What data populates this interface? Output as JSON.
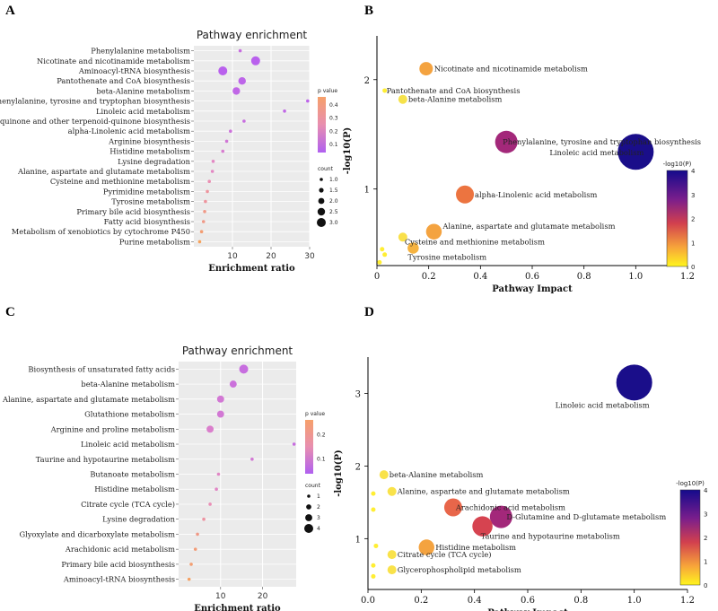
{
  "chart_data": [
    {
      "panel": "A",
      "type": "scatter",
      "title": "Pathway enrichment",
      "xlabel": "Enrichment ratio",
      "xlim": [
        0,
        30
      ],
      "xticks": [
        "10",
        "20",
        "30"
      ],
      "legend_pvalue": {
        "title": "p value",
        "ticks": [
          "0.4",
          "0.3",
          "0.2",
          "0.1"
        ]
      },
      "legend_count": {
        "title": "count",
        "items": [
          "1.0",
          "1.5",
          "2.0",
          "2.5",
          "3.0"
        ]
      },
      "points": [
        {
          "label": "Phenylalanine metabolism",
          "x": 12.0,
          "count": 1,
          "p": 0.08
        },
        {
          "label": "Nicotinate and nicotinamide metabolism",
          "x": 16.0,
          "count": 3,
          "p": 0.02
        },
        {
          "label": "Aminoacyl-tRNA biosynthesis",
          "x": 7.5,
          "count": 3,
          "p": 0.02
        },
        {
          "label": "Pantothenate and CoA biosynthesis",
          "x": 12.5,
          "count": 2.5,
          "p": 0.04
        },
        {
          "label": "beta-Alanine metabolism",
          "x": 11.0,
          "count": 2.5,
          "p": 0.05
        },
        {
          "label": "Phenylalanine, tyrosine and tryptophan biosynthesis",
          "x": 29.5,
          "count": 1,
          "p": 0.04
        },
        {
          "label": "Linoleic acid metabolism",
          "x": 23.5,
          "count": 1,
          "p": 0.05
        },
        {
          "label": "Ubiquinone and other terpenoid-quinone biosynthesis",
          "x": 13.0,
          "count": 1,
          "p": 0.08
        },
        {
          "label": "alpha-Linolenic acid metabolism",
          "x": 9.5,
          "count": 1,
          "p": 0.1
        },
        {
          "label": "Arginine biosynthesis",
          "x": 8.5,
          "count": 1,
          "p": 0.12
        },
        {
          "label": "Histidine metabolism",
          "x": 7.5,
          "count": 1,
          "p": 0.15
        },
        {
          "label": "Lysine degradation",
          "x": 5.0,
          "count": 1,
          "p": 0.2
        },
        {
          "label": "Alanine, aspartate and glutamate metabolism",
          "x": 4.8,
          "count": 1,
          "p": 0.2
        },
        {
          "label": "Cysteine and methionine metabolism",
          "x": 4.0,
          "count": 1,
          "p": 0.25
        },
        {
          "label": "Pyrimidine metabolism",
          "x": 3.5,
          "count": 1,
          "p": 0.3
        },
        {
          "label": "Tyrosine metabolism",
          "x": 3.0,
          "count": 1,
          "p": 0.3
        },
        {
          "label": "Primary bile acid biosynthesis",
          "x": 2.8,
          "count": 1,
          "p": 0.35
        },
        {
          "label": "Fatty acid biosynthesis",
          "x": 2.5,
          "count": 1,
          "p": 0.35
        },
        {
          "label": "Metabolism of xenobiotics by cytochrome P450",
          "x": 2.0,
          "count": 1,
          "p": 0.4
        },
        {
          "label": "Purine metabolism",
          "x": 1.5,
          "count": 1,
          "p": 0.45
        }
      ]
    },
    {
      "panel": "B",
      "type": "scatter",
      "xlabel": "Pathway Impact",
      "ylabel": "-log10(P)",
      "xlim": [
        0,
        1.2
      ],
      "ylim": [
        0.3,
        2.4
      ],
      "xticks": [
        "0",
        "0.2",
        "0.4",
        "0.6",
        "0.8",
        "1.0",
        "1.2"
      ],
      "yticks": [
        "1",
        "2"
      ],
      "colorbar": {
        "title": "-log10(P)",
        "ticks": [
          "4",
          "3",
          "2",
          "1",
          "0"
        ]
      },
      "points": [
        {
          "label": "Nicotinate and nicotinamide metabolism",
          "x": 0.19,
          "y": 2.1,
          "size": 6,
          "color": "#f4a340"
        },
        {
          "label": "Pantothenate and CoA biosynthesis",
          "x": 0.03,
          "y": 1.9,
          "size": 2,
          "color": "#ffee33"
        },
        {
          "label": "beta-Alanine metabolism",
          "x": 0.1,
          "y": 1.82,
          "size": 4,
          "color": "#f6e24a"
        },
        {
          "label": "Phenylalanine, tyrosine and tryptophan biosynthesis",
          "x": 0.5,
          "y": 1.43,
          "size": 10,
          "color": "#a3287a"
        },
        {
          "label": "Linoleic acid metabolism",
          "x": 1.0,
          "y": 1.34,
          "size": 16,
          "color": "#1a0e8a"
        },
        {
          "label": "alpha-Linolenic acid metabolism",
          "x": 0.34,
          "y": 0.95,
          "size": 8,
          "color": "#ec7440"
        },
        {
          "label": "Alanine, aspartate and glutamate metabolism",
          "x": 0.22,
          "y": 0.61,
          "size": 7,
          "color": "#f4a340"
        },
        {
          "label": "Cysteine and methionine metabolism",
          "x": 0.1,
          "y": 0.56,
          "size": 4,
          "color": "#f9e04a"
        },
        {
          "label": "Tyrosine metabolism",
          "x": 0.14,
          "y": 0.46,
          "size": 5,
          "color": "#f6b340"
        },
        {
          "label": "",
          "x": 0.02,
          "y": 0.45,
          "size": 2,
          "color": "#ffee33"
        },
        {
          "label": "",
          "x": 0.03,
          "y": 0.4,
          "size": 2,
          "color": "#ffee33"
        },
        {
          "label": "",
          "x": 0.01,
          "y": 0.33,
          "size": 2,
          "color": "#ffee33"
        }
      ]
    },
    {
      "panel": "C",
      "type": "scatter",
      "title": "Pathway enrichment",
      "xlabel": "Enrichment ratio",
      "xlim": [
        0,
        28
      ],
      "xticks": [
        "10",
        "20"
      ],
      "legend_pvalue": {
        "title": "p value",
        "ticks": [
          "0.2",
          "0.1"
        ]
      },
      "legend_count": {
        "title": "count",
        "items": [
          "1",
          "2",
          "3",
          "4"
        ]
      },
      "points": [
        {
          "label": "Biosynthesis of unsaturated fatty acids",
          "x": 15.5,
          "count": 4,
          "p": 0.05
        },
        {
          "label": "beta-Alanine metabolism",
          "x": 13.0,
          "count": 3,
          "p": 0.06
        },
        {
          "label": "Alanine, aspartate and glutamate metabolism",
          "x": 10.0,
          "count": 3,
          "p": 0.08
        },
        {
          "label": "Glutathione metabolism",
          "x": 10.0,
          "count": 3,
          "p": 0.08
        },
        {
          "label": "Arginine and proline metabolism",
          "x": 7.5,
          "count": 3,
          "p": 0.1
        },
        {
          "label": "Linoleic acid metabolism",
          "x": 27.5,
          "count": 1,
          "p": 0.05
        },
        {
          "label": "Taurine and hypotaurine metabolism",
          "x": 17.5,
          "count": 1,
          "p": 0.08
        },
        {
          "label": "Butanoate metabolism",
          "x": 9.5,
          "count": 1,
          "p": 0.12
        },
        {
          "label": "Histidine metabolism",
          "x": 9.0,
          "count": 1,
          "p": 0.12
        },
        {
          "label": "Citrate cycle (TCA cycle)",
          "x": 7.5,
          "count": 1,
          "p": 0.15
        },
        {
          "label": "Lysine degradation",
          "x": 6.0,
          "count": 1,
          "p": 0.18
        },
        {
          "label": "Glyoxylate and dicarboxylate metabolism",
          "x": 4.5,
          "count": 1,
          "p": 0.22
        },
        {
          "label": "Arachidonic acid metabolism",
          "x": 4.0,
          "count": 1,
          "p": 0.24
        },
        {
          "label": "Primary bile acid biosynthesis",
          "x": 3.0,
          "count": 1,
          "p": 0.25
        },
        {
          "label": "Aminoacyl-tRNA biosynthesis",
          "x": 2.5,
          "count": 1,
          "p": 0.27
        }
      ]
    },
    {
      "panel": "D",
      "type": "scatter",
      "xlabel": "Pathway Impact",
      "ylabel": "-log10(P)",
      "xlim": [
        0,
        1.2
      ],
      "ylim": [
        0.3,
        3.5
      ],
      "xticks": [
        "0.0",
        "0.2",
        "0.4",
        "0.6",
        "0.8",
        "1.0",
        "1.2"
      ],
      "yticks": [
        "1",
        "2",
        "3"
      ],
      "colorbar": {
        "title": "-log10(P)",
        "ticks": [
          "4",
          "3",
          "2",
          "1",
          "0"
        ]
      },
      "points": [
        {
          "label": "Linoleic acid metabolism",
          "x": 1.0,
          "y": 3.15,
          "size": 16,
          "color": "#1a0e8a"
        },
        {
          "label": "beta-Alanine metabolism",
          "x": 0.06,
          "y": 1.88,
          "size": 4,
          "color": "#f9e24a"
        },
        {
          "label": "Alanine, aspartate and glutamate metabolism",
          "x": 0.09,
          "y": 1.65,
          "size": 4,
          "color": "#f9e24a"
        },
        {
          "label": "Arachidonic acid metabolism",
          "x": 0.32,
          "y": 1.43,
          "size": 8,
          "color": "#e8664a"
        },
        {
          "label": "D-Glutamine and D-glutamate metabolism",
          "x": 0.5,
          "y": 1.3,
          "size": 10,
          "color": "#a3287a"
        },
        {
          "label": "Taurine and hypotaurine metabolism",
          "x": 0.43,
          "y": 1.17,
          "size": 9,
          "color": "#d64350"
        },
        {
          "label": "Histidine metabolism",
          "x": 0.22,
          "y": 0.88,
          "size": 7,
          "color": "#f4a340"
        },
        {
          "label": "Citrate cycle (TCA cycle)",
          "x": 0.09,
          "y": 0.78,
          "size": 4,
          "color": "#f9e24a"
        },
        {
          "label": "Glycerophospholipid metabolism",
          "x": 0.09,
          "y": 0.57,
          "size": 4,
          "color": "#f9e24a"
        },
        {
          "label": "",
          "x": 0.02,
          "y": 1.62,
          "size": 2,
          "color": "#ffee33"
        },
        {
          "label": "",
          "x": 0.02,
          "y": 1.4,
          "size": 2,
          "color": "#ffee33"
        },
        {
          "label": "",
          "x": 0.03,
          "y": 0.9,
          "size": 2,
          "color": "#ffee33"
        },
        {
          "label": "",
          "x": 0.02,
          "y": 0.63,
          "size": 2,
          "color": "#ffee33"
        },
        {
          "label": "",
          "x": 0.02,
          "y": 0.48,
          "size": 2,
          "color": "#ffee33"
        }
      ]
    }
  ],
  "panel_letters": [
    "A",
    "B",
    "C",
    "D"
  ]
}
